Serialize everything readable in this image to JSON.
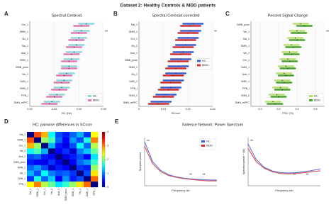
{
  "figure_title": "Dataset 2: Healthy Controls & MDD patients",
  "chart_data": [
    {
      "type": "interval",
      "panel": "A",
      "title": "Spectral Centroid",
      "xlabel": "SC (Hz)",
      "categories": [
        "Cer_1",
        "DMN_1",
        "Vis_2",
        "Sal_1",
        "Aud_1",
        "SMN_1",
        "DMN_pcun",
        "Vis_1",
        "DAN_1",
        "SMN_2",
        "FPN_l",
        "DMN_mPFC"
      ],
      "xlim": [
        0.02,
        0.05
      ],
      "xticks": [
        0.02,
        0.03,
        0.04,
        0.05
      ],
      "legend": "lower right",
      "annotation": "**",
      "series": [
        {
          "name": "HC",
          "color": "#8fd6dc",
          "values": [
            0.043,
            0.041,
            0.04,
            0.039,
            0.038,
            0.037,
            0.036,
            0.035,
            0.034,
            0.033,
            0.031,
            0.029
          ],
          "errors": [
            0.003,
            0.003,
            0.003,
            0.003,
            0.003,
            0.003,
            0.003,
            0.003,
            0.003,
            0.003,
            0.003,
            0.003
          ]
        },
        {
          "name": "MDD",
          "color": "#e07ab0",
          "values": [
            0.041,
            0.04,
            0.039,
            0.038,
            0.037,
            0.036,
            0.036,
            0.034,
            0.033,
            0.032,
            0.03,
            0.028
          ],
          "errors": [
            0.003,
            0.003,
            0.003,
            0.003,
            0.003,
            0.003,
            0.003,
            0.003,
            0.003,
            0.003,
            0.003,
            0.003
          ]
        }
      ]
    },
    {
      "type": "interval",
      "panel": "B",
      "title": "Spectral Centroid corrected",
      "xlabel": "SCcorr",
      "categories": [
        "Sal_1",
        "DMN_1",
        "Cer_1",
        "Vis_2",
        "Aud_1",
        "DMN_pcun",
        "SMN_1",
        "Vis_1",
        "DAN_1",
        "FPN_l",
        "SMN_2",
        "DMN_mPFC"
      ],
      "xlim": [
        0,
        0.03
      ],
      "xticks": [
        0,
        0.01,
        0.02,
        0.03
      ],
      "legend": "center right",
      "annotation": "**",
      "series": [
        {
          "name": "HC",
          "color": "#3a5fcd",
          "values": [
            0.022,
            0.021,
            0.02,
            0.019,
            0.018,
            0.017,
            0.016,
            0.015,
            0.014,
            0.013,
            0.011,
            0.009
          ],
          "errors": [
            0.004,
            0.004,
            0.004,
            0.004,
            0.004,
            0.004,
            0.004,
            0.004,
            0.004,
            0.004,
            0.004,
            0.004
          ]
        },
        {
          "name": "MDD",
          "color": "#d03030",
          "values": [
            0.021,
            0.02,
            0.019,
            0.018,
            0.017,
            0.016,
            0.015,
            0.014,
            0.013,
            0.012,
            0.01,
            0.008
          ],
          "errors": [
            0.004,
            0.004,
            0.004,
            0.004,
            0.004,
            0.004,
            0.004,
            0.004,
            0.004,
            0.004,
            0.004,
            0.004
          ]
        }
      ]
    },
    {
      "type": "interval",
      "panel": "C",
      "title": "Percent Signal Change",
      "xlabel": "PSC (%)",
      "categories": [
        "DMN_pcun",
        "Vis_1",
        "Sal_1",
        "DMN_1",
        "Vis_2",
        "Cer_1",
        "DAN_1",
        "Aud_1",
        "SMN_1",
        "FPN_l",
        "SMN_2",
        "DMN_mPFC"
      ],
      "xlim": [
        0.15,
        0.55
      ],
      "xticks": [
        0.2,
        0.3,
        0.4,
        0.5
      ],
      "legend": "lower right",
      "annotation": "**",
      "series": [
        {
          "name": "HC",
          "color": "#b8e070",
          "values": [
            0.42,
            0.4,
            0.39,
            0.37,
            0.36,
            0.35,
            0.34,
            0.33,
            0.32,
            0.31,
            0.29,
            0.27
          ],
          "errors": [
            0.04,
            0.04,
            0.04,
            0.04,
            0.04,
            0.04,
            0.04,
            0.04,
            0.04,
            0.04,
            0.04,
            0.04
          ]
        },
        {
          "name": "MDD",
          "color": "#4aa030",
          "values": [
            0.44,
            0.41,
            0.4,
            0.38,
            0.37,
            0.36,
            0.35,
            0.34,
            0.33,
            0.32,
            0.3,
            0.28
          ],
          "errors": [
            0.04,
            0.04,
            0.04,
            0.04,
            0.04,
            0.04,
            0.04,
            0.04,
            0.04,
            0.04,
            0.04,
            0.04
          ]
        }
      ]
    },
    {
      "type": "heatmap",
      "panel": "D",
      "title": "HC: pairwise differences in SCcorr",
      "categories": [
        "Sal_1",
        "DMN_1",
        "Cer_1",
        "Vis_2",
        "Aud_1",
        "DMN_pcun",
        "SMN_1",
        "Vis_1",
        "DAN_1",
        "FPN_l"
      ],
      "zlim": [
        0,
        4
      ],
      "zticks": [
        0,
        1,
        2,
        3,
        4
      ],
      "z": [
        [
          0,
          3.2,
          2.8,
          1.5,
          0.8,
          0.6,
          0.9,
          1.2,
          0.7,
          2.5
        ],
        [
          3.2,
          0,
          2.1,
          1.8,
          0.9,
          0.5,
          1.1,
          0.8,
          1.6,
          3.0
        ],
        [
          2.8,
          2.1,
          0,
          1.2,
          0.6,
          0.4,
          0.8,
          1.5,
          0.9,
          2.2
        ],
        [
          1.5,
          1.8,
          1.2,
          0,
          0.5,
          0.7,
          0.3,
          1.0,
          1.3,
          1.9
        ],
        [
          0.8,
          0.9,
          0.6,
          0.5,
          0,
          0.4,
          0.6,
          0.8,
          0.5,
          1.4
        ],
        [
          0.6,
          0.5,
          0.4,
          0.7,
          0.4,
          0,
          0.5,
          0.9,
          1.1,
          1.7
        ],
        [
          0.9,
          1.1,
          0.8,
          0.3,
          0.6,
          0.5,
          0,
          0.7,
          0.6,
          2.1
        ],
        [
          1.2,
          0.8,
          1.5,
          1.0,
          0.8,
          0.9,
          0.7,
          0,
          0.8,
          2.6
        ],
        [
          0.7,
          1.6,
          0.9,
          1.3,
          0.5,
          1.1,
          0.6,
          0.8,
          0,
          3.1
        ],
        [
          2.5,
          3.0,
          2.2,
          1.9,
          1.4,
          1.7,
          2.1,
          2.6,
          3.1,
          0
        ]
      ]
    },
    {
      "type": "line",
      "panel": "E",
      "title": "Salience Network: Power Spectrum",
      "xlabel": "Frequency bin",
      "ylabel": "Spectral power",
      "x": [
        1,
        2,
        3,
        4,
        5,
        6,
        7,
        8,
        9,
        10
      ],
      "xlim": [
        1,
        10
      ],
      "ylim": [
        0,
        1.1
      ],
      "legend": "upper right",
      "annotations": [
        "**",
        "**",
        "**"
      ],
      "series": [
        {
          "name": "HC",
          "color": "#3a5fcd",
          "values": [
            1.0,
            0.55,
            0.35,
            0.25,
            0.2,
            0.17,
            0.15,
            0.14,
            0.13,
            0.13
          ]
        },
        {
          "name": "MDD",
          "color": "#d03030",
          "values": [
            0.9,
            0.5,
            0.32,
            0.23,
            0.19,
            0.16,
            0.14,
            0.12,
            0.11,
            0.11
          ]
        }
      ]
    },
    {
      "type": "line",
      "xlabel": "Frequency bin",
      "ylabel": "Spectral power * f(k)",
      "x": [
        1,
        2,
        3,
        4,
        5,
        6,
        7,
        8,
        9,
        10
      ],
      "xlim": [
        1,
        10
      ],
      "ylim": [
        0,
        1.1
      ],
      "annotations": [
        "**",
        "**",
        "**"
      ],
      "series": [
        {
          "color": "#3a5fcd",
          "values": [
            0.95,
            0.6,
            0.42,
            0.34,
            0.3,
            0.29,
            0.3,
            0.32,
            0.35,
            0.38
          ]
        },
        {
          "color": "#d03030",
          "values": [
            0.85,
            0.55,
            0.4,
            0.32,
            0.28,
            0.27,
            0.28,
            0.3,
            0.32,
            0.34
          ]
        }
      ]
    }
  ]
}
